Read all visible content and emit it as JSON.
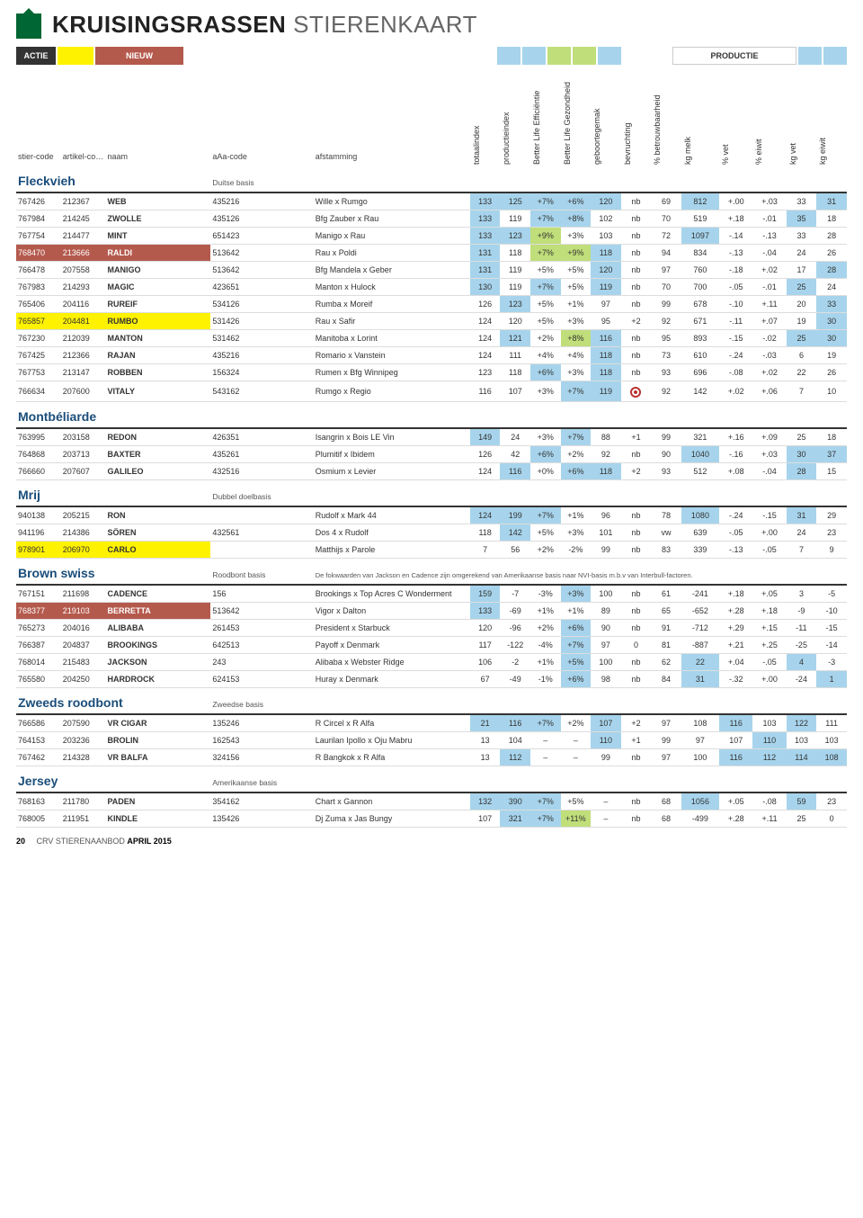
{
  "title": {
    "bold": "KRUISINGSRASSEN",
    "light": "STIERENKAART"
  },
  "legend": {
    "actie_label": "ACTIE",
    "nieuw_label": "NIEUW",
    "productie_label": "PRODUCTIE",
    "colors": {
      "actie_bg": "#333333",
      "actie_fg": "#ffffff",
      "yellow": "#fff200",
      "red": "#b45a4d",
      "white": "#ffffff",
      "lightblue": "#a7d4ec",
      "lightgreen": "#c0de7a"
    }
  },
  "columns": {
    "stiercode": "stier-code",
    "artikelcode": "artikel-code",
    "naam": "naam",
    "aaa": "aAa-code",
    "afstamming": "afstamming",
    "vert": [
      "totaalindex",
      "productieindex",
      "Better Life Efficiëntie",
      "Better Life Gezondheid",
      "geboortegemak",
      "bevruchting",
      "% betrouwbaarheid",
      "kg melk",
      "% vet",
      "% eiwit",
      "kg vet",
      "kg eiwit"
    ]
  },
  "sections": [
    {
      "name": "Fleckvieh",
      "basis": "Duitse basis",
      "rows": [
        {
          "s": "767426",
          "a": "212367",
          "n": "WEB",
          "aaa": "435216",
          "af": "Wille x Rumgo",
          "v": [
            "133",
            "125",
            "+7%",
            "+6%",
            "120",
            "nb",
            "69",
            "812",
            "+.00",
            "+.03",
            "33",
            "31"
          ],
          "hi": [
            0,
            1,
            2,
            3,
            4,
            7,
            11
          ]
        },
        {
          "s": "767984",
          "a": "214245",
          "n": "ZWOLLE",
          "aaa": "435126",
          "af": "Bfg Zauber x Rau",
          "v": [
            "133",
            "119",
            "+7%",
            "+8%",
            "102",
            "nb",
            "70",
            "519",
            "+.18",
            "-.01",
            "35",
            "18"
          ],
          "hi": [
            0,
            2,
            3,
            10
          ]
        },
        {
          "s": "767754",
          "a": "214477",
          "n": "MINT",
          "aaa": "651423",
          "af": "Manigo x Rau",
          "v": [
            "133",
            "123",
            "+9%",
            "+3%",
            "103",
            "nb",
            "72",
            "1097",
            "-.14",
            "-.13",
            "33",
            "28"
          ],
          "hi": [
            0,
            1,
            7
          ],
          "hig": [
            2
          ]
        },
        {
          "s": "768470",
          "a": "213666",
          "n": "RALDI",
          "aaa": "513642",
          "af": "Rau x Poldi",
          "v": [
            "131",
            "118",
            "+7%",
            "+9%",
            "118",
            "nb",
            "94",
            "834",
            "-.13",
            "-.04",
            "24",
            "26"
          ],
          "hi": [
            0,
            4
          ],
          "hig": [
            2,
            3
          ],
          "row": "red"
        },
        {
          "s": "766478",
          "a": "207558",
          "n": "MANIGO",
          "aaa": "513642",
          "af": "Bfg Mandela x Geber",
          "v": [
            "131",
            "119",
            "+5%",
            "+5%",
            "120",
            "nb",
            "97",
            "760",
            "-.18",
            "+.02",
            "17",
            "28"
          ],
          "hi": [
            0,
            4,
            11
          ]
        },
        {
          "s": "767983",
          "a": "214293",
          "n": "MAGIC",
          "aaa": "423651",
          "af": "Manton x Hulock",
          "v": [
            "130",
            "119",
            "+7%",
            "+5%",
            "119",
            "nb",
            "70",
            "700",
            "-.05",
            "-.01",
            "25",
            "24"
          ],
          "hi": [
            0,
            2,
            4,
            10
          ]
        },
        {
          "s": "765406",
          "a": "204116",
          "n": "RUREIF",
          "aaa": "534126",
          "af": "Rumba x Moreif",
          "v": [
            "126",
            "123",
            "+5%",
            "+1%",
            "97",
            "nb",
            "99",
            "678",
            "-.10",
            "+.11",
            "20",
            "33"
          ],
          "hi": [
            1,
            11
          ]
        },
        {
          "s": "765857",
          "a": "204481",
          "n": "RUMBO",
          "aaa": "531426",
          "af": "Rau x Safir",
          "v": [
            "124",
            "120",
            "+5%",
            "+3%",
            "95",
            "+2",
            "92",
            "671",
            "-.11",
            "+.07",
            "19",
            "30"
          ],
          "hi": [
            11
          ],
          "row": "yellow"
        },
        {
          "s": "767230",
          "a": "212039",
          "n": "MANTON",
          "aaa": "531462",
          "af": "Manitoba x Lorint",
          "v": [
            "124",
            "121",
            "+2%",
            "+8%",
            "116",
            "nb",
            "95",
            "893",
            "-.15",
            "-.02",
            "25",
            "30"
          ],
          "hi": [
            1,
            4,
            10,
            11
          ],
          "hig": [
            3
          ]
        },
        {
          "s": "767425",
          "a": "212366",
          "n": "RAJAN",
          "aaa": "435216",
          "af": "Romario x Vanstein",
          "v": [
            "124",
            "111",
            "+4%",
            "+4%",
            "118",
            "nb",
            "73",
            "610",
            "-.24",
            "-.03",
            "6",
            "19"
          ],
          "hi": [
            4
          ]
        },
        {
          "s": "767753",
          "a": "213147",
          "n": "ROBBEN",
          "aaa": "156324",
          "af": "Rumen x Bfg Winnipeg",
          "v": [
            "123",
            "118",
            "+6%",
            "+3%",
            "118",
            "nb",
            "93",
            "696",
            "-.08",
            "+.02",
            "22",
            "26"
          ],
          "hi": [
            2,
            4
          ]
        },
        {
          "s": "766634",
          "a": "207600",
          "n": "VITALY",
          "aaa": "543162",
          "af": "Rumgo x Regio",
          "v": [
            "116",
            "107",
            "+3%",
            "+7%",
            "119",
            "nb",
            "92",
            "142",
            "+.02",
            "+.06",
            "7",
            "10"
          ],
          "hi": [
            3,
            4
          ],
          "target": 5
        }
      ]
    },
    {
      "name": "Montbéliarde",
      "basis": "",
      "rows": [
        {
          "s": "763995",
          "a": "203158",
          "n": "REDON",
          "aaa": "426351",
          "af": "Isangrin x Bois LE Vin",
          "v": [
            "149",
            "24",
            "+3%",
            "+7%",
            "88",
            "+1",
            "99",
            "321",
            "+.16",
            "+.09",
            "25",
            "18"
          ],
          "hi": [
            0,
            3
          ]
        },
        {
          "s": "764868",
          "a": "203713",
          "n": "BAXTER",
          "aaa": "435261",
          "af": "Plumitif x Ibidem",
          "v": [
            "126",
            "42",
            "+6%",
            "+2%",
            "92",
            "nb",
            "90",
            "1040",
            "-.16",
            "+.03",
            "30",
            "37"
          ],
          "hi": [
            2,
            7,
            10,
            11
          ],
          "hig": []
        },
        {
          "s": "766660",
          "a": "207607",
          "n": "GALILEO",
          "aaa": "432516",
          "af": "Osmium x Levier",
          "v": [
            "124",
            "116",
            "+0%",
            "+6%",
            "118",
            "+2",
            "93",
            "512",
            "+.08",
            "-.04",
            "28",
            "15"
          ],
          "hi": [
            1,
            3,
            4,
            10
          ]
        }
      ]
    },
    {
      "name": "Mrij",
      "basis": "Dubbel doelbasis",
      "rows": [
        {
          "s": "940138",
          "a": "205215",
          "n": "RON",
          "aaa": "",
          "af": "Rudolf x Mark 44",
          "v": [
            "124",
            "199",
            "+7%",
            "+1%",
            "96",
            "nb",
            "78",
            "1080",
            "-.24",
            "-.15",
            "31",
            "29"
          ],
          "hi": [
            0,
            1,
            2,
            7,
            10
          ]
        },
        {
          "s": "941196",
          "a": "214386",
          "n": "SÖREN",
          "aaa": "432561",
          "af": "Dos 4 x Rudolf",
          "v": [
            "118",
            "142",
            "+5%",
            "+3%",
            "101",
            "nb",
            "vw",
            "639",
            "-.05",
            "+.00",
            "24",
            "23"
          ],
          "hi": [
            1
          ]
        },
        {
          "s": "978901",
          "a": "206970",
          "n": "CARLO",
          "aaa": "",
          "af": "Matthijs x Parole",
          "v": [
            "7",
            "56",
            "+2%",
            "-2%",
            "99",
            "nb",
            "83",
            "339",
            "-.13",
            "-.05",
            "7",
            "9"
          ],
          "hi": [],
          "row": "yellow"
        }
      ]
    },
    {
      "name": "Brown swiss",
      "basis": "Roodbont basis",
      "note": "De fokwaarden van Jackson en Cadence zijn omgerekend van Amerikaanse basis naar NVI-basis m.b.v van Interbull-factoren.",
      "rows": [
        {
          "s": "767151",
          "a": "211698",
          "n": "CADENCE",
          "aaa": "156",
          "af": "Brookings x Top Acres C Wonderment",
          "v": [
            "159",
            "-7",
            "-3%",
            "+3%",
            "100",
            "nb",
            "61",
            "-241",
            "+.18",
            "+.05",
            "3",
            "-5"
          ],
          "hi": [
            0,
            3
          ]
        },
        {
          "s": "768377",
          "a": "219103",
          "n": "BERRETTA",
          "aaa": "513642",
          "af": "Vigor x Dalton",
          "v": [
            "133",
            "-69",
            "+1%",
            "+1%",
            "89",
            "nb",
            "65",
            "-652",
            "+.28",
            "+.18",
            "-9",
            "-10"
          ],
          "hi": [
            0
          ],
          "row": "red"
        },
        {
          "s": "765273",
          "a": "204016",
          "n": "ALIBABA",
          "aaa": "261453",
          "af": "President x Starbuck",
          "v": [
            "120",
            "-96",
            "+2%",
            "+6%",
            "90",
            "nb",
            "91",
            "-712",
            "+.29",
            "+.15",
            "-11",
            "-15"
          ],
          "hi": [
            3
          ]
        },
        {
          "s": "766387",
          "a": "204837",
          "n": "BROOKINGS",
          "aaa": "642513",
          "af": "Payoff x Denmark",
          "v": [
            "117",
            "-122",
            "-4%",
            "+7%",
            "97",
            "0",
            "81",
            "-887",
            "+.21",
            "+.25",
            "-25",
            "-14"
          ],
          "hi": [
            3
          ]
        },
        {
          "s": "768014",
          "a": "215483",
          "n": "JACKSON",
          "aaa": "243",
          "af": "Alibaba x Webster Ridge",
          "v": [
            "106",
            "-2",
            "+1%",
            "+5%",
            "100",
            "nb",
            "62",
            "22",
            "+.04",
            "-.05",
            "4",
            "-3"
          ],
          "hi": [
            3,
            7,
            10
          ]
        },
        {
          "s": "765580",
          "a": "204250",
          "n": "HARDROCK",
          "aaa": "624153",
          "af": "Huray x Denmark",
          "v": [
            "67",
            "-49",
            "-1%",
            "+6%",
            "98",
            "nb",
            "84",
            "31",
            "-.32",
            "+.00",
            "-24",
            "1"
          ],
          "hi": [
            3,
            7,
            11
          ]
        }
      ]
    },
    {
      "name": "Zweeds roodbont",
      "basis": "Zweedse basis",
      "rows": [
        {
          "s": "766586",
          "a": "207590",
          "n": "VR CIGAR",
          "aaa": "135246",
          "af": "R Circel x R Alfa",
          "v": [
            "21",
            "116",
            "+7%",
            "+2%",
            "107",
            "+2",
            "97",
            "108",
            "116",
            "103",
            "122",
            "111"
          ],
          "hi": [
            0,
            1,
            2,
            4,
            8,
            10
          ]
        },
        {
          "s": "764153",
          "a": "203236",
          "n": "BROLIN",
          "aaa": "162543",
          "af": "Laurilan Ipollo x Oju Mabru",
          "v": [
            "13",
            "104",
            "–",
            "–",
            "110",
            "+1",
            "99",
            "97",
            "107",
            "110",
            "103",
            "103"
          ],
          "hi": [
            4,
            9
          ]
        },
        {
          "s": "767462",
          "a": "214328",
          "n": "VR BALFA",
          "aaa": "324156",
          "af": "R Bangkok x R Alfa",
          "v": [
            "13",
            "112",
            "–",
            "–",
            "99",
            "nb",
            "97",
            "100",
            "116",
            "112",
            "114",
            "108"
          ],
          "hi": [
            1,
            8,
            9,
            10,
            11
          ]
        }
      ]
    },
    {
      "name": "Jersey",
      "basis": "Amerikaanse basis",
      "rows": [
        {
          "s": "768163",
          "a": "211780",
          "n": "PADEN",
          "aaa": "354162",
          "af": "Chart x Gannon",
          "v": [
            "132",
            "390",
            "+7%",
            "+5%",
            "–",
            "nb",
            "68",
            "1056",
            "+.05",
            "-.08",
            "59",
            "23"
          ],
          "hi": [
            0,
            1,
            2,
            7,
            10
          ]
        },
        {
          "s": "768005",
          "a": "211951",
          "n": "KINDLE",
          "aaa": "135426",
          "af": "Dj Zuma x Jas Bungy",
          "v": [
            "107",
            "321",
            "+7%",
            "+11%",
            "–",
            "nb",
            "68",
            "-499",
            "+.28",
            "+.11",
            "25",
            "0"
          ],
          "hi": [
            1,
            2
          ],
          "hig": [
            3
          ]
        }
      ]
    }
  ],
  "footer": {
    "page": "20",
    "text": "CRV STIERENAANBOD",
    "bold": "APRIL 2015"
  }
}
